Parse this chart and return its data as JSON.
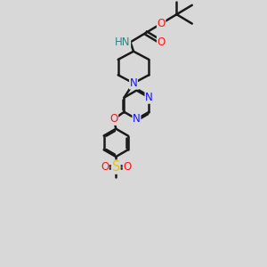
{
  "bg_color": "#d8d8d8",
  "bond_color": "#1a1a1a",
  "atom_colors": {
    "N": "#1414ff",
    "O": "#ff1414",
    "S": "#e6c800",
    "H": "#3a8080",
    "C": "#1a1a1a"
  },
  "figsize": [
    3.0,
    3.0
  ],
  "dpi": 100,
  "xlim": [
    0,
    10
  ],
  "ylim": [
    0,
    13
  ]
}
